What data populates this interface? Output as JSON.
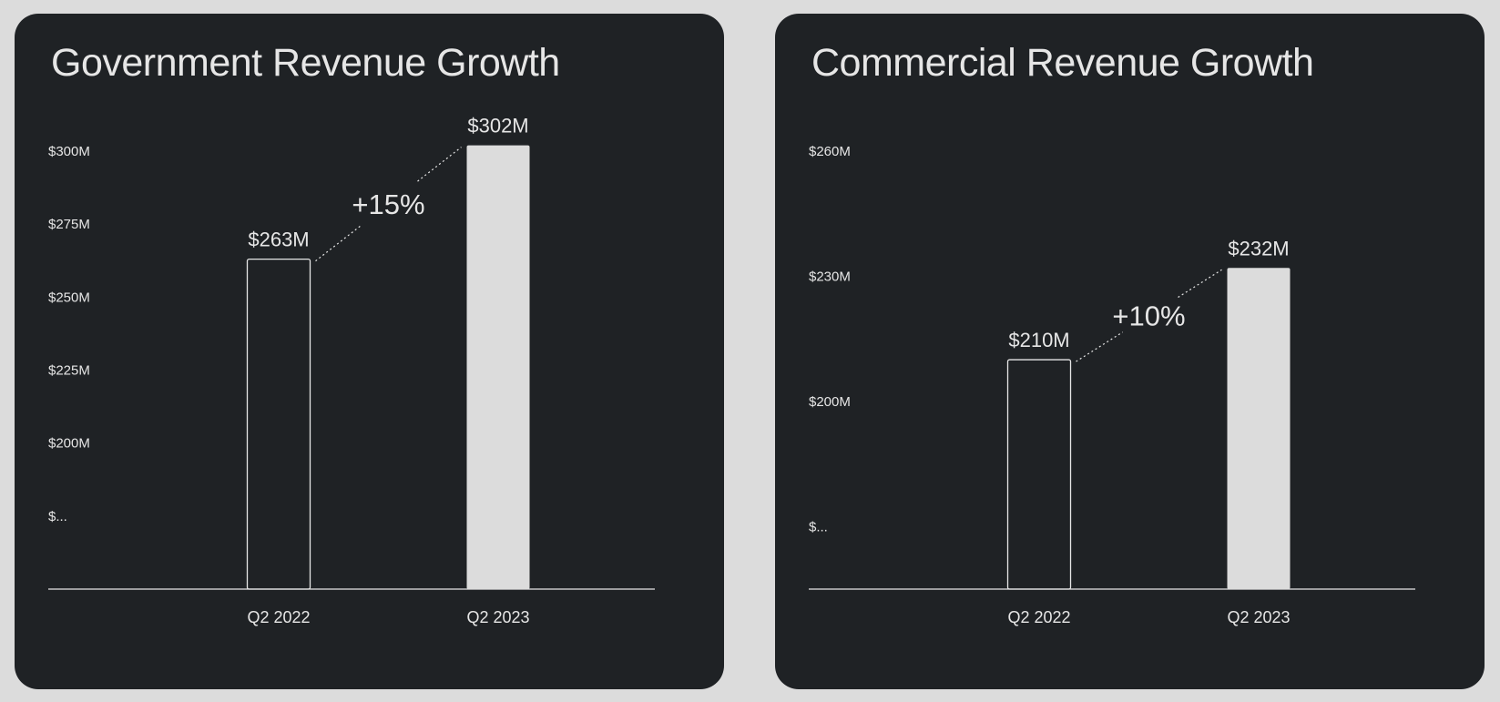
{
  "colors": {
    "page_background": "#dcdcdc",
    "card_background": "#1f2225",
    "text": "#e6e6e6",
    "bar_outline": "#e6e6e6",
    "bar_fill": "#dcdcdc"
  },
  "chart_data": [
    {
      "type": "bar",
      "title": "Government Revenue Growth",
      "categories": [
        "Q2 2022",
        "Q2 2023"
      ],
      "values": [
        263,
        302
      ],
      "value_labels": [
        "$263M",
        "$302M"
      ],
      "bar_styles": [
        "outline",
        "filled"
      ],
      "ylim": [
        150,
        310
      ],
      "y_ticks": [
        {
          "value": 300,
          "label": "$300M"
        },
        {
          "value": 275,
          "label": "$275M"
        },
        {
          "value": 250,
          "label": "$250M"
        },
        {
          "value": 225,
          "label": "$225M"
        },
        {
          "value": 200,
          "label": "$200M"
        },
        {
          "value": 175,
          "label": "$..."
        }
      ],
      "growth_label": "+15%",
      "xlabel": "",
      "ylabel": "",
      "grid": false
    },
    {
      "type": "bar",
      "title": "Commercial Revenue Growth",
      "categories": [
        "Q2 2022",
        "Q2 2023"
      ],
      "values": [
        210,
        232
      ],
      "value_labels": [
        "$210M",
        "$232M"
      ],
      "bar_styles": [
        "outline",
        "filled"
      ],
      "ylim": [
        155,
        265
      ],
      "y_ticks": [
        {
          "value": 260,
          "label": "$260M"
        },
        {
          "value": 230,
          "label": "$230M"
        },
        {
          "value": 200,
          "label": "$200M"
        },
        {
          "value": 170,
          "label": "$..."
        }
      ],
      "growth_label": "+10%",
      "xlabel": "",
      "ylabel": "",
      "grid": false
    }
  ]
}
